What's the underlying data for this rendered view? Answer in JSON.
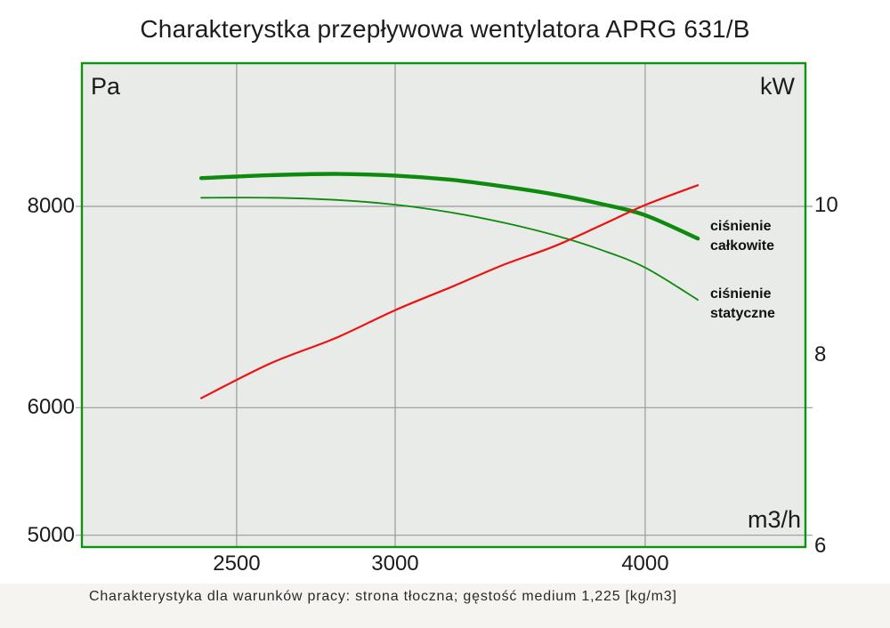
{
  "title": "Charakterystka przepływowa wentylatora APRG 631/B",
  "caption": "Charakterystyka dla warunków pracy: strona tłoczna; gęstość medium 1,225 [kg/m3]",
  "colors": {
    "curve_green": "#0e8a0e",
    "power_red": "#ee1111",
    "plot_bg": "#e8ebe8",
    "grid": "#9a9a9a",
    "border_green": "#119111",
    "text": "#1b1b1b"
  },
  "chart_data": {
    "type": "line",
    "title": "Charakterystka przepływowa wentylatora APRG 631/B",
    "x_axis": {
      "label": "m3/h",
      "scale": "log",
      "ticks": [
        2500,
        3000,
        4000
      ],
      "range": [
        2090,
        4815
      ]
    },
    "y_axis_left": {
      "label": "Pa",
      "scale": "log",
      "ticks": [
        8000,
        6000,
        5000
      ],
      "range": [
        4910,
        9830
      ]
    },
    "y_axis_right": {
      "label": "kW",
      "scale": "log",
      "ticks": [
        10,
        8,
        6
      ],
      "range": [
        6.0,
        12.37
      ]
    },
    "grid": true,
    "legend_position": "on-chart-labels",
    "series": [
      {
        "name": "ciśnienie całkowite",
        "axis": "left",
        "color_key": "curve_green",
        "stroke_width": 4.4,
        "x": [
          2400,
          2600,
          2800,
          3000,
          3200,
          3400,
          3600,
          3800,
          4000,
          4250
        ],
        "y": [
          8330,
          8365,
          8380,
          8360,
          8310,
          8230,
          8140,
          8030,
          7900,
          7640
        ]
      },
      {
        "name": "ciśnienie statyczne",
        "axis": "left",
        "color_key": "curve_green",
        "stroke_width": 1.8,
        "x": [
          2400,
          2600,
          2800,
          3000,
          3200,
          3400,
          3600,
          3800,
          4000,
          4250
        ],
        "y": [
          8100,
          8100,
          8075,
          8020,
          7930,
          7815,
          7680,
          7520,
          7330,
          7000
        ]
      },
      {
        "name": "kW",
        "axis": "right",
        "color_key": "power_red",
        "stroke_width": 2.2,
        "x": [
          2400,
          2600,
          2800,
          3000,
          3200,
          3400,
          3600,
          3800,
          4000,
          4250
        ],
        "y": [
          7.5,
          7.9,
          8.2,
          8.55,
          8.85,
          9.15,
          9.4,
          9.7,
          10.0,
          10.3
        ]
      }
    ],
    "annotations": [
      {
        "lines": [
          "ciśnienie",
          "całkowite"
        ],
        "x": 4310,
        "pa": 7880
      },
      {
        "lines": [
          "ciśnienie",
          "statyczne"
        ],
        "x": 4310,
        "pa": 7150
      }
    ]
  }
}
